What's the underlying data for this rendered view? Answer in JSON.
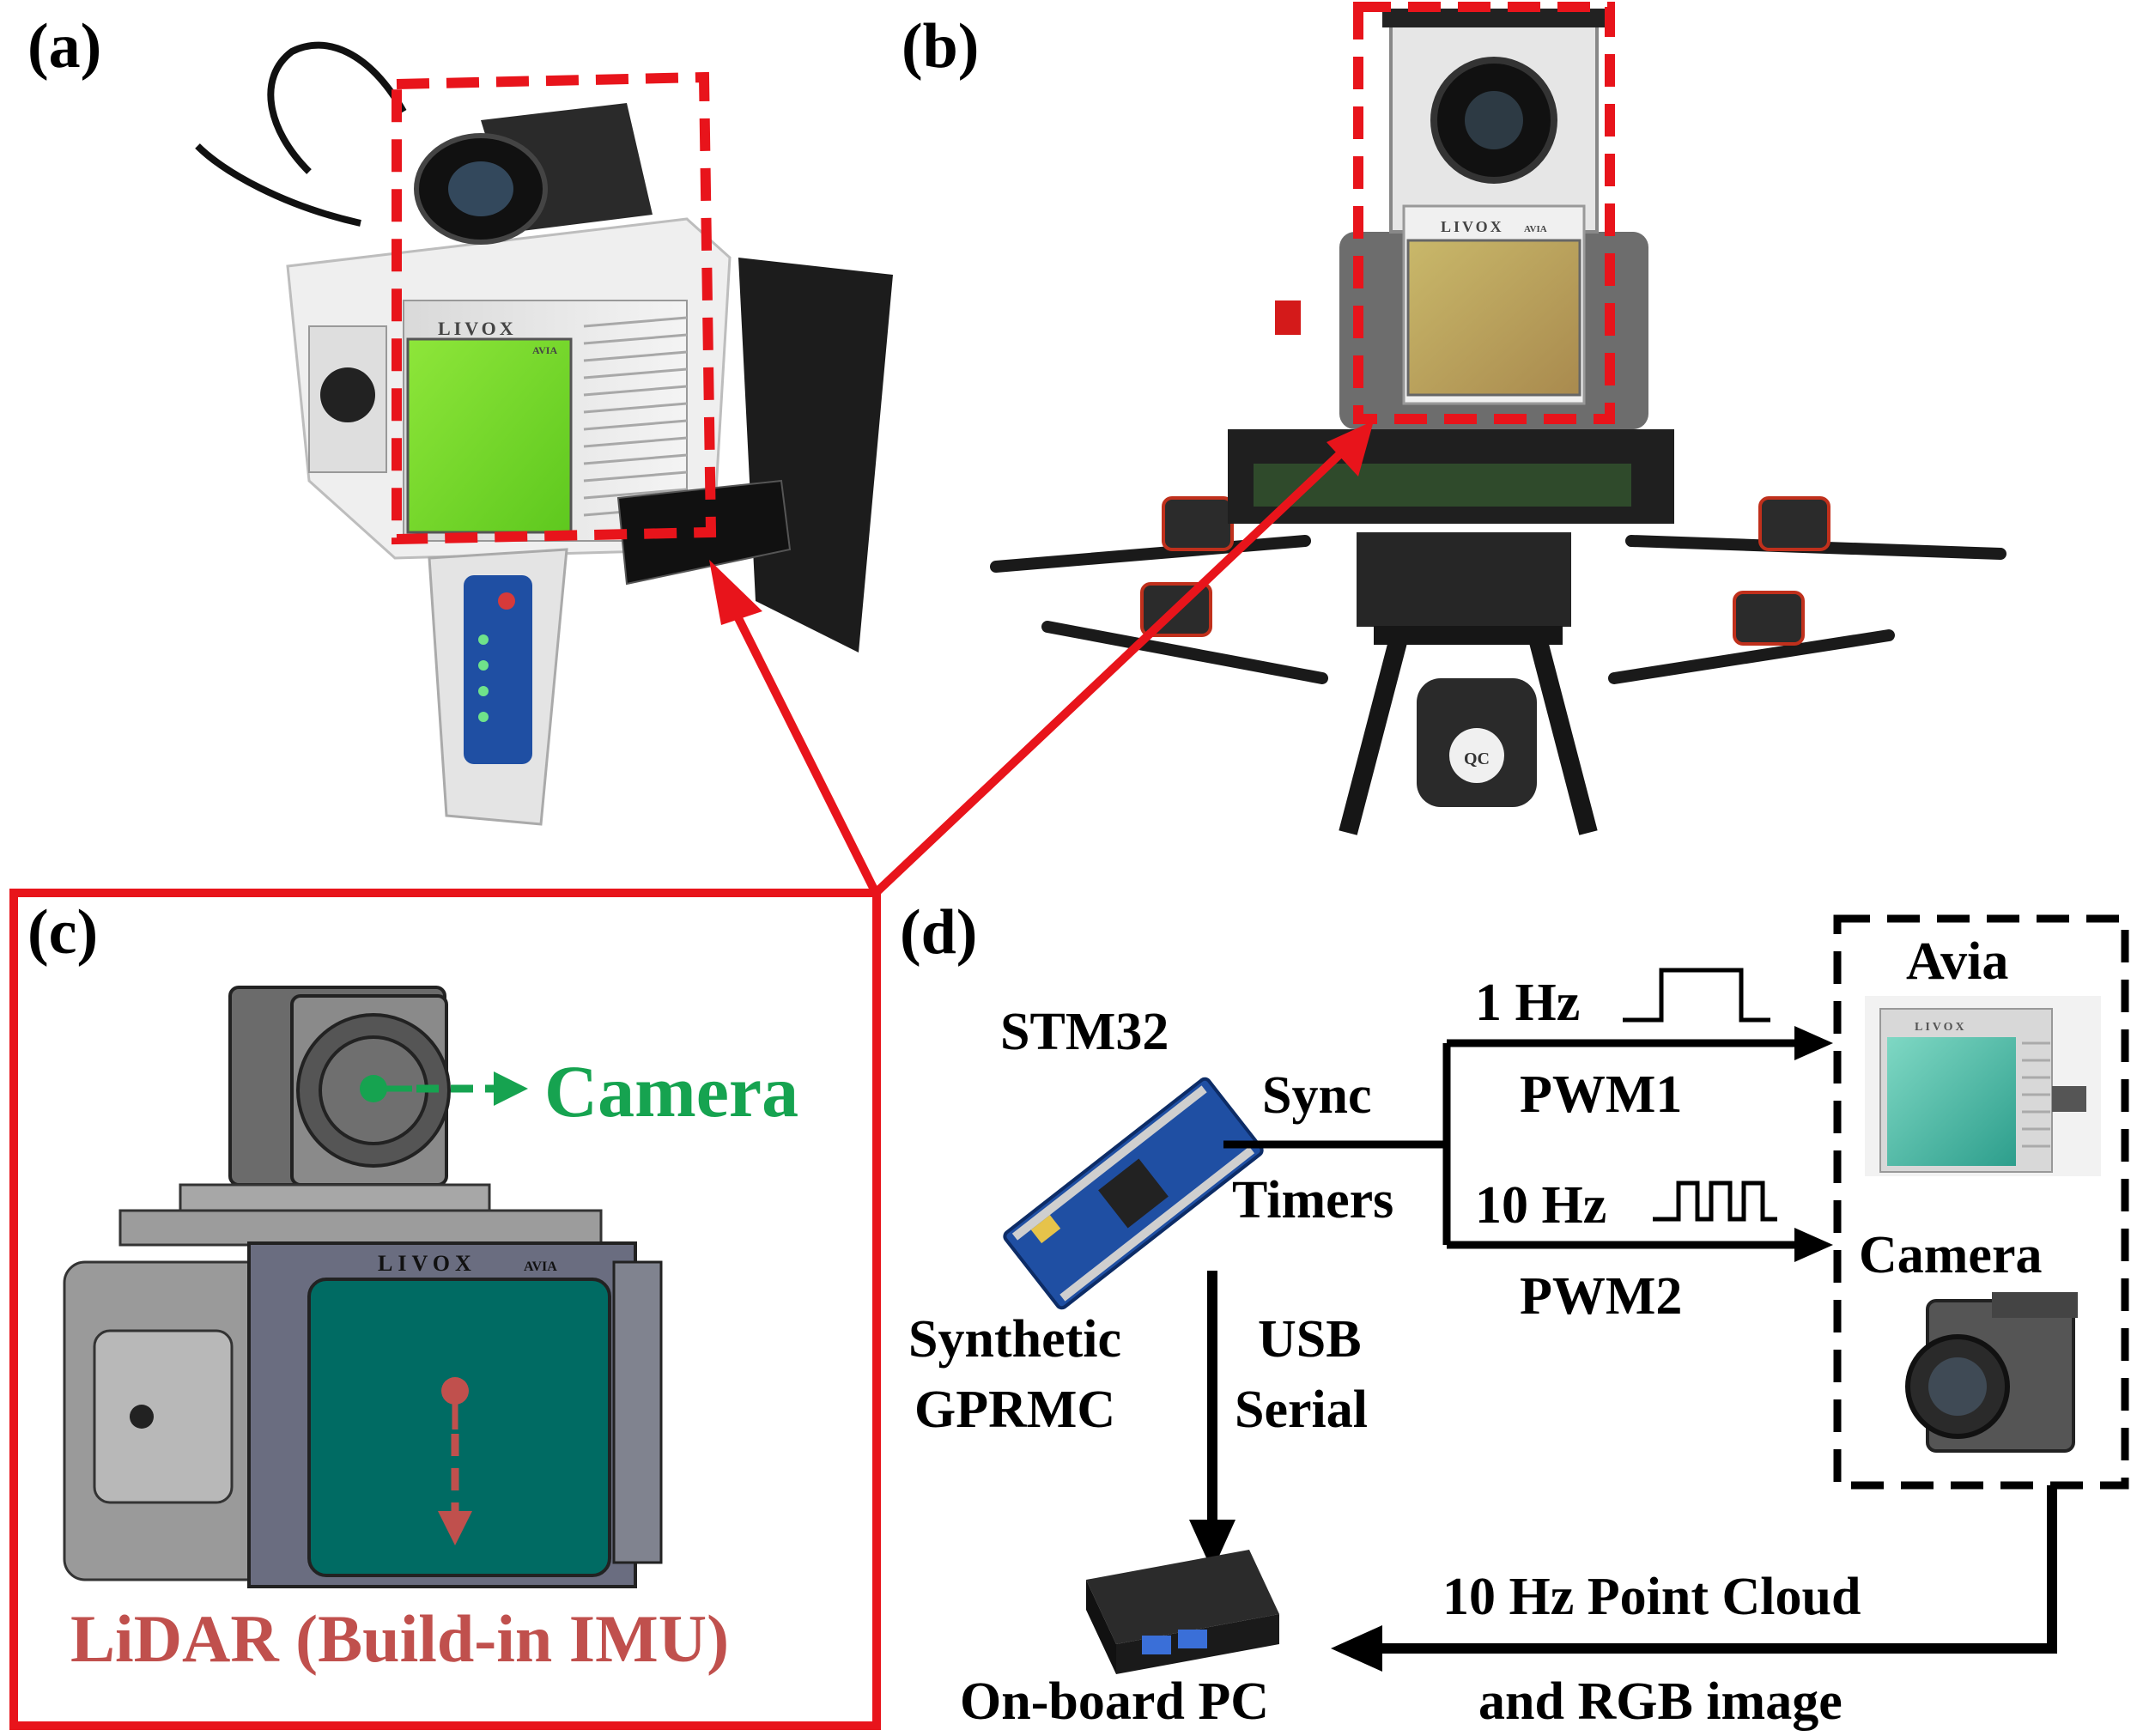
{
  "panels": {
    "a": {
      "label": "(a)"
    },
    "b": {
      "label": "(b)"
    },
    "c": {
      "label": "(c)",
      "camera_label": "Camera",
      "lidar_label": "LiDAR (Build-in IMU)",
      "livox_brand": "LIVOX",
      "avia_text": "AVIA"
    },
    "d": {
      "label": "(d)"
    }
  },
  "photo_a": {
    "livox_brand": "LIVOX",
    "avia_text": "AVIA"
  },
  "photo_b": {
    "livox_brand": "LIVOX",
    "avia_text": "AVIA",
    "qc_text": "QC"
  },
  "diagram": {
    "stm32": "STM32",
    "sync": "Sync",
    "timers": "Timers",
    "hz1": "1 Hz",
    "pwm1": "PWM1",
    "hz10": "10 Hz",
    "pwm2": "PWM2",
    "avia": "Avia",
    "camera": "Camera",
    "synthetic": "Synthetic",
    "gprmc": "GPRMC",
    "usb": "USB",
    "serial": "Serial",
    "pointcloud": "10 Hz Point Cloud",
    "rgb": "and RGB image",
    "onboard": "On-board PC",
    "avia_brand": "LIVOX"
  },
  "colors": {
    "highlight_red": "#e8141b",
    "camera_green": "#16a350",
    "lidar_red": "#c0504d",
    "lidar_window": "#006b63"
  }
}
